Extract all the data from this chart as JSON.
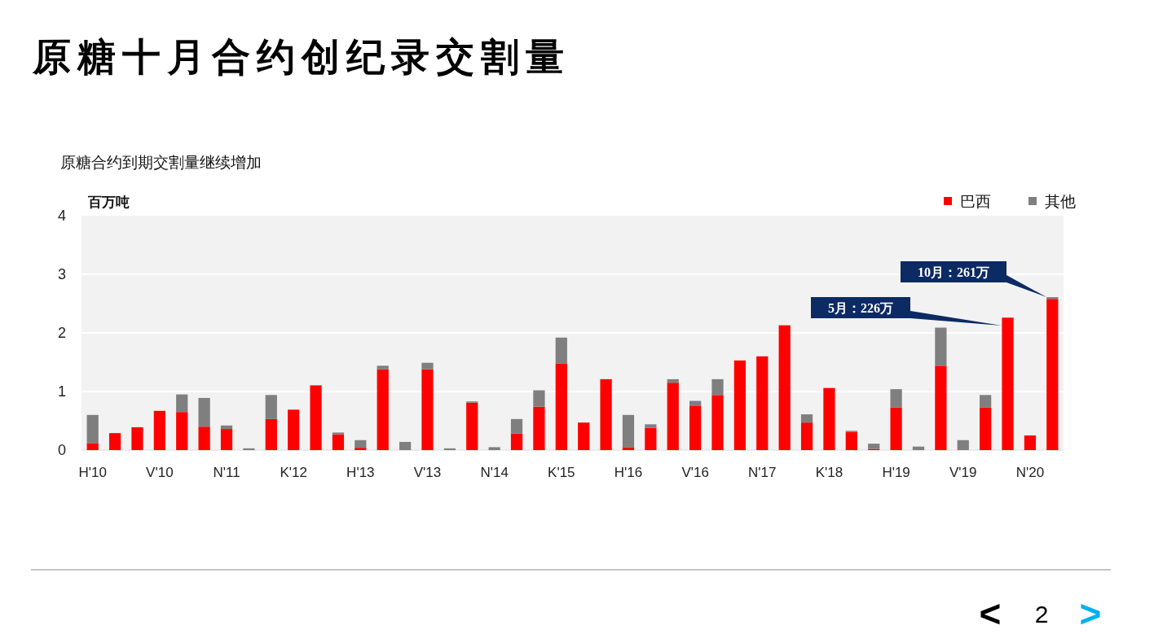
{
  "chart_data": {
    "type": "bar",
    "stacked": true,
    "title": "原糖十月合约创纪录交割量",
    "subtitle": "原糖合约到期交割量继续增加",
    "ylabel": "百万吨",
    "categories": [
      "H'10",
      null,
      null,
      "V'10",
      null,
      null,
      "N'11",
      null,
      null,
      "K'12",
      null,
      null,
      "H'13",
      null,
      null,
      "V'13",
      null,
      null,
      "N'14",
      null,
      null,
      "K'15",
      null,
      null,
      "H'16",
      null,
      null,
      "V'16",
      null,
      null,
      "N'17",
      null,
      null,
      "K'18",
      null,
      null,
      "H'19",
      null,
      null,
      "V'19",
      null,
      null,
      "N'20",
      null
    ],
    "series": [
      {
        "name": "巴西",
        "color": "#ff0000",
        "values": [
          0.12,
          0.29,
          0.39,
          0.67,
          0.65,
          0.4,
          0.36,
          null,
          0.53,
          0.69,
          1.1,
          0.27,
          0.04,
          1.38,
          null,
          1.38,
          null,
          0.81,
          null,
          0.28,
          0.74,
          1.48,
          0.47,
          1.21,
          0.05,
          0.38,
          1.15,
          0.75,
          0.94,
          1.53,
          1.6,
          2.13,
          0.47,
          1.06,
          0.31,
          0.02,
          0.73,
          null,
          1.44,
          null,
          0.73,
          2.26,
          0.25,
          2.58
        ]
      },
      {
        "name": "其他",
        "color": "#7f7f7f",
        "values": [
          0.48,
          null,
          null,
          null,
          0.3,
          0.49,
          0.06,
          0.03,
          0.41,
          null,
          0.01,
          0.03,
          0.13,
          0.06,
          0.14,
          0.11,
          0.03,
          0.02,
          0.05,
          0.25,
          0.28,
          0.44,
          null,
          null,
          0.55,
          0.06,
          0.06,
          0.09,
          0.27,
          null,
          null,
          null,
          0.14,
          null,
          0.02,
          0.09,
          0.31,
          0.06,
          0.65,
          0.17,
          0.21,
          null,
          null,
          0.03
        ]
      }
    ],
    "ylim": [
      0,
      4
    ],
    "yticks": [
      0,
      1,
      2,
      3,
      4
    ],
    "grid": "y",
    "legend": "top right",
    "annotations": [
      "5月：226万",
      "10月：261万",
      "<",
      "2",
      ">"
    ]
  }
}
